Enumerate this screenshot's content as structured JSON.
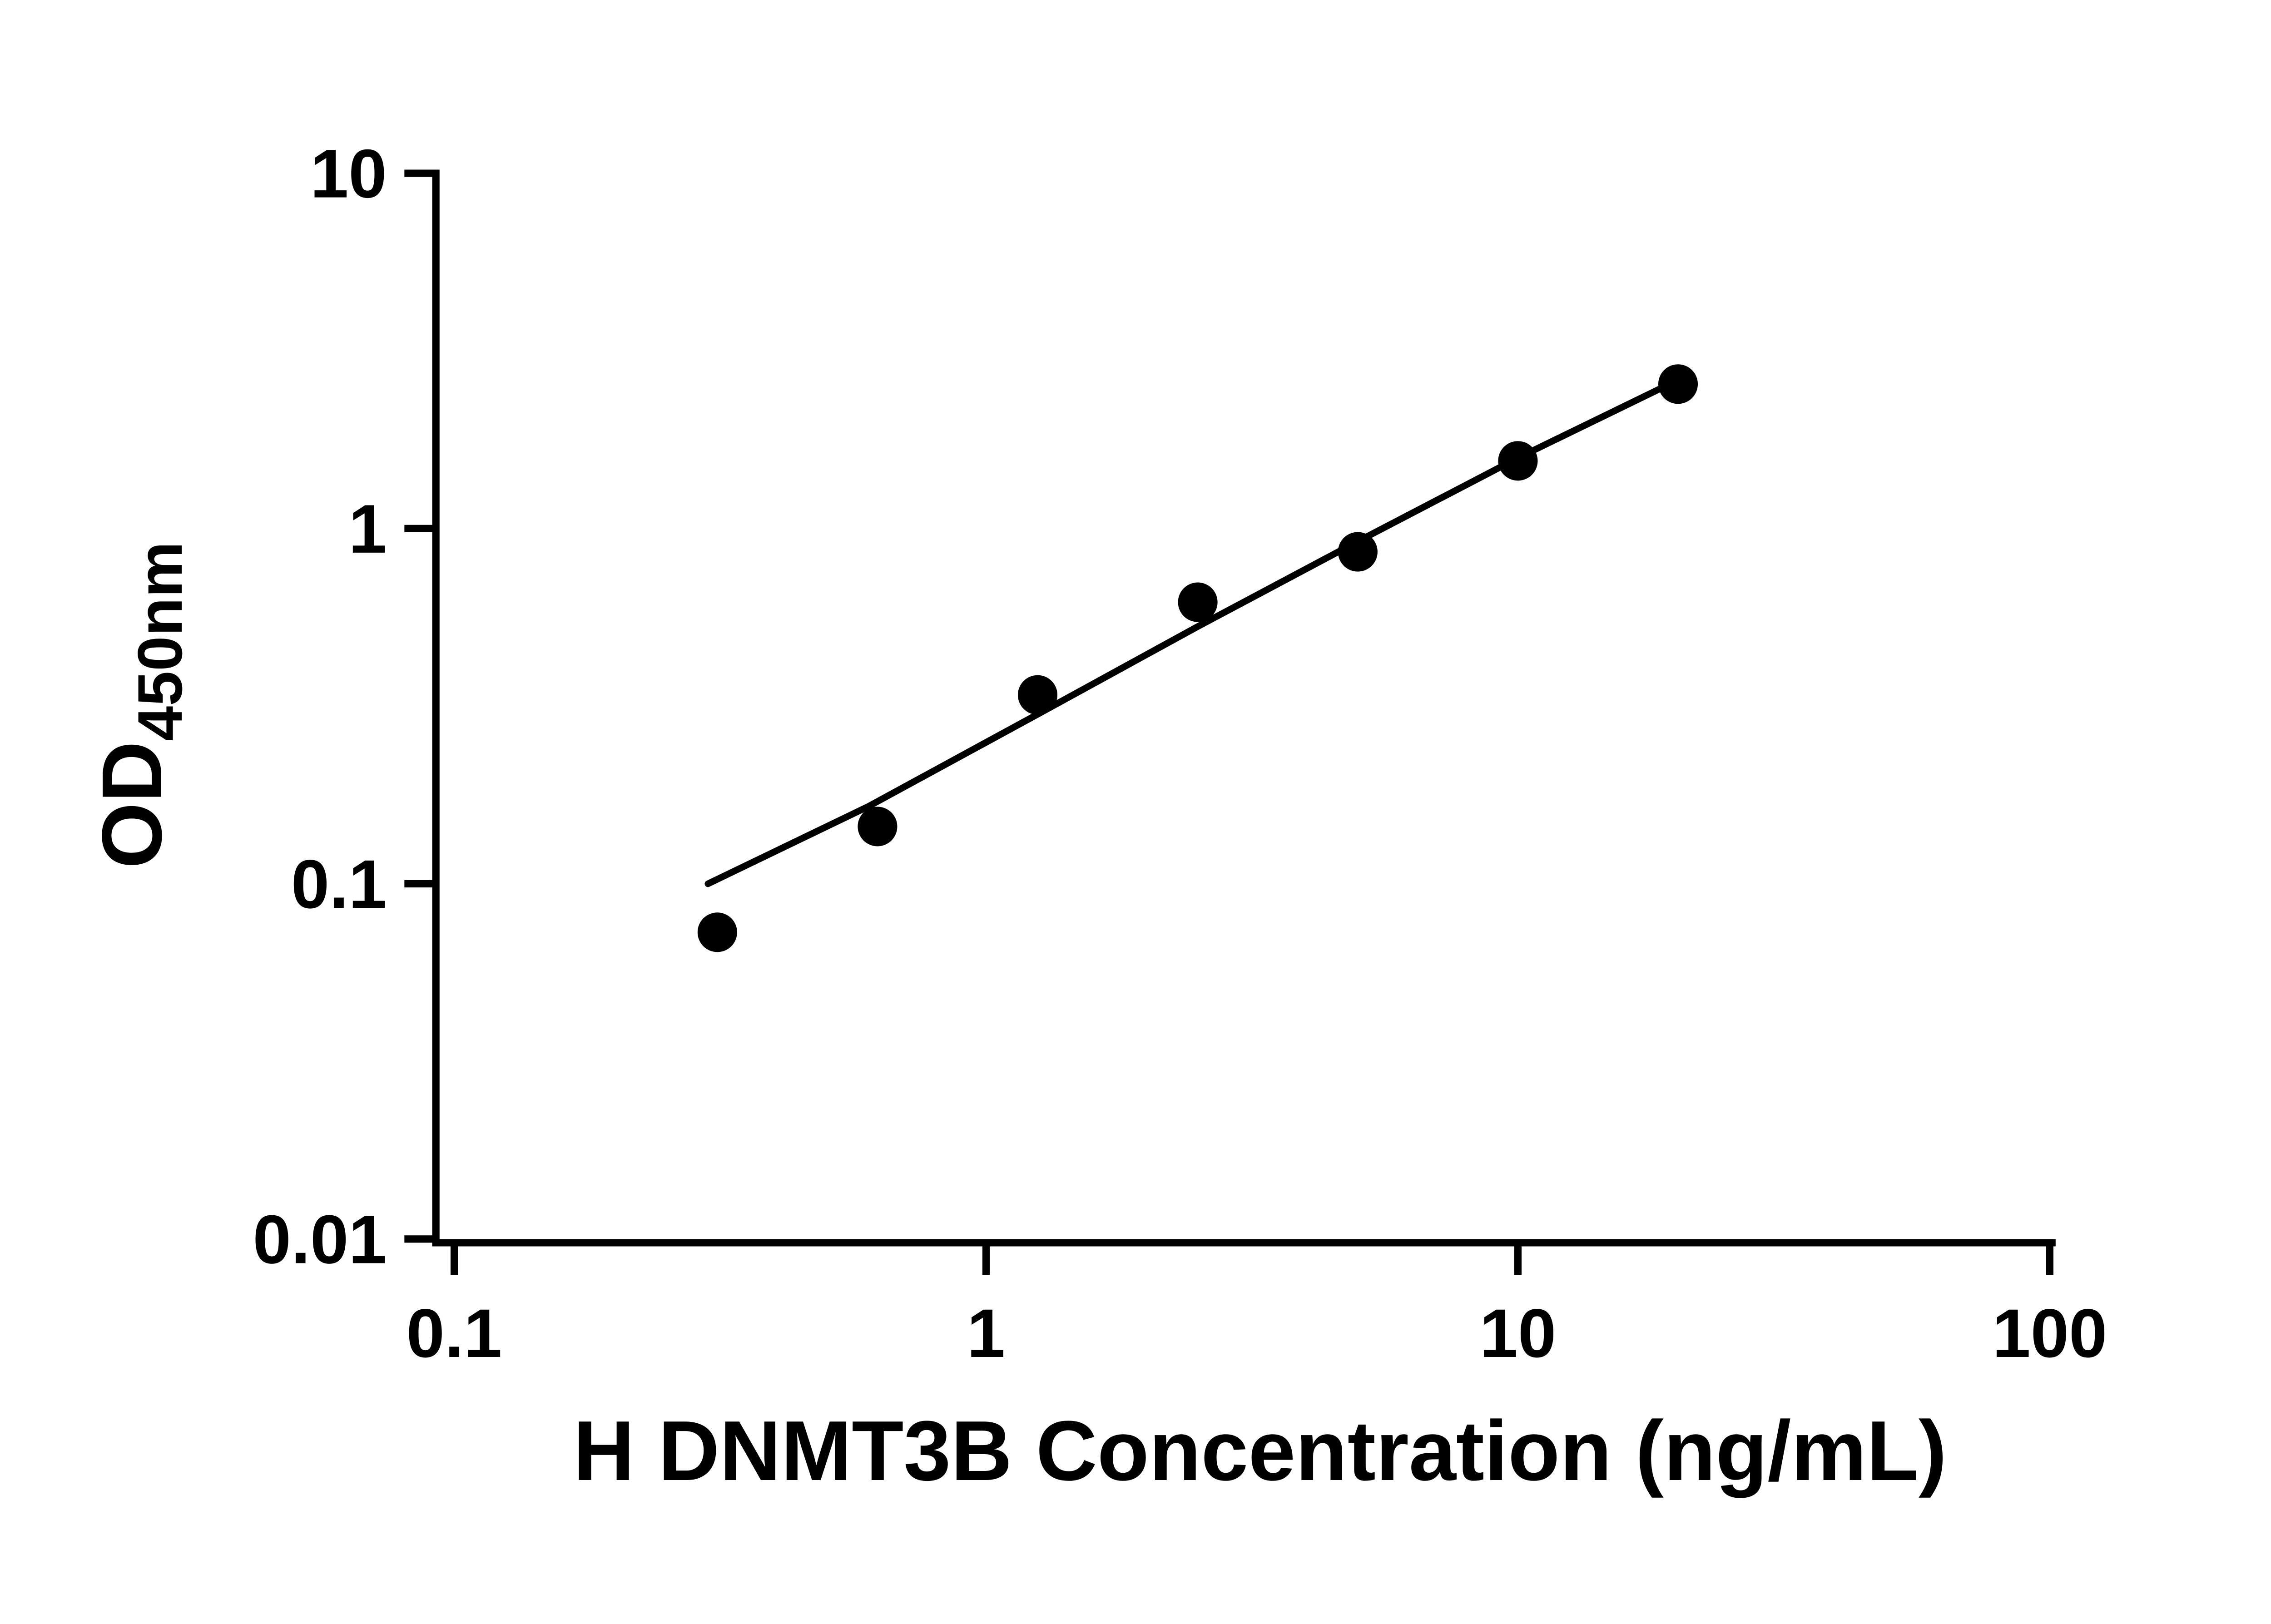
{
  "chart_data": {
    "type": "scatter",
    "title": "",
    "xlabel": "H DNMT3B Concentration (ng/mL)",
    "ylabel_main": "OD",
    "ylabel_sub": "450nm",
    "x_scale": "log",
    "y_scale": "log",
    "xlim": [
      0.1,
      100
    ],
    "ylim": [
      0.01,
      10
    ],
    "x_ticks": [
      0.1,
      1,
      10,
      100
    ],
    "x_tick_labels": [
      "0.1",
      "1",
      "10",
      "100"
    ],
    "y_ticks": [
      0.01,
      0.1,
      1,
      10
    ],
    "y_tick_labels": [
      "0.01",
      "0.1",
      "1",
      "10"
    ],
    "grid": false,
    "legend": false,
    "marker_color": "#000000",
    "line_color": "#000000",
    "points": [
      {
        "x": 0.3125,
        "y": 0.073
      },
      {
        "x": 0.625,
        "y": 0.145
      },
      {
        "x": 1.25,
        "y": 0.34
      },
      {
        "x": 2.5,
        "y": 0.62
      },
      {
        "x": 5,
        "y": 0.86
      },
      {
        "x": 10,
        "y": 1.55
      },
      {
        "x": 20,
        "y": 2.55
      }
    ],
    "trend_line": [
      {
        "x": 0.3,
        "y": 0.1
      },
      {
        "x": 0.6,
        "y": 0.165
      },
      {
        "x": 1.25,
        "y": 0.3
      },
      {
        "x": 2.5,
        "y": 0.53
      },
      {
        "x": 5,
        "y": 0.92
      },
      {
        "x": 10,
        "y": 1.58
      },
      {
        "x": 20,
        "y": 2.62
      }
    ]
  }
}
